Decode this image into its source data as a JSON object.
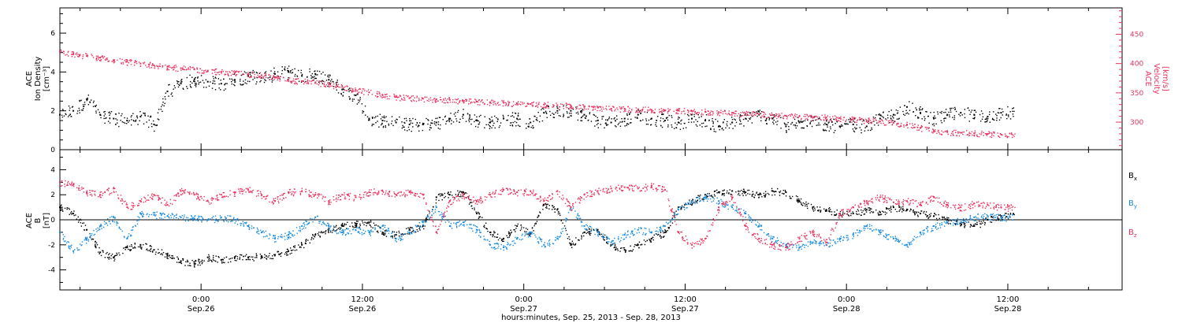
{
  "chart_data": [
    {
      "type": "scatter",
      "panel": "top",
      "ylabel_left": [
        "ACE",
        "Ion Density",
        "[cm⁻³]"
      ],
      "ylabel_right": [
        "ACE",
        "Velocity",
        "[km/s]"
      ],
      "left_ylim": [
        0,
        7.3
      ],
      "left_ticks": [
        0,
        2,
        4,
        6
      ],
      "left_tick_labels": [
        "0",
        "2",
        "4",
        "6"
      ],
      "right_ylim": [
        253,
        495
      ],
      "right_ticks": [
        300,
        350,
        400,
        450
      ],
      "right_tick_labels": [
        "300",
        "350",
        "400",
        "450"
      ],
      "colors": {
        "density": "#000000",
        "velocity": "#e8335f"
      },
      "series": [
        {
          "key": "density",
          "axis": "left",
          "x": [
            0,
            2,
            4,
            6,
            8,
            10,
            12,
            14,
            16,
            18,
            20,
            22,
            24,
            26,
            28,
            30,
            32,
            34,
            36,
            38,
            40,
            42,
            44,
            46,
            48,
            50,
            52,
            54,
            56,
            58,
            60,
            62,
            64,
            66,
            68,
            70,
            72,
            74,
            76,
            78,
            80,
            82,
            84,
            86,
            88,
            90,
            92,
            94,
            96,
            98,
            100,
            102,
            104,
            106,
            108,
            110,
            112,
            114,
            116,
            118,
            120,
            122,
            124,
            126,
            128,
            130,
            132,
            134,
            136,
            138,
            140
          ],
          "y": [
            1.8,
            2.0,
            2.6,
            1.8,
            1.6,
            1.5,
            1.7,
            1.3,
            3.0,
            3.4,
            3.6,
            3.5,
            3.4,
            3.6,
            3.8,
            3.7,
            3.9,
            4.0,
            3.8,
            3.9,
            3.6,
            3.1,
            2.8,
            1.6,
            1.5,
            1.4,
            1.3,
            1.3,
            1.4,
            1.6,
            1.8,
            1.5,
            1.4,
            1.6,
            1.6,
            1.4,
            1.9,
            2.0,
            2.0,
            1.8,
            1.5,
            1.4,
            1.6,
            1.8,
            1.6,
            1.5,
            1.4,
            1.6,
            1.5,
            1.2,
            1.4,
            1.6,
            1.8,
            1.6,
            1.2,
            1.4,
            1.5,
            1.3,
            1.2,
            1.3,
            1.2,
            1.6,
            1.8,
            2.2,
            1.9,
            1.6,
            1.8,
            1.9,
            1.8,
            1.7,
            1.9
          ]
        },
        {
          "key": "velocity",
          "axis": "right",
          "x": [
            0,
            2,
            4,
            6,
            8,
            10,
            12,
            14,
            16,
            18,
            20,
            22,
            24,
            26,
            28,
            30,
            32,
            34,
            36,
            38,
            40,
            42,
            44,
            46,
            48,
            50,
            52,
            54,
            56,
            58,
            60,
            62,
            64,
            66,
            68,
            70,
            72,
            74,
            76,
            78,
            80,
            82,
            84,
            86,
            88,
            90,
            92,
            94,
            96,
            98,
            100,
            102,
            104,
            106,
            108,
            110,
            112,
            114,
            116,
            118,
            120,
            122,
            124,
            126,
            128,
            130,
            132,
            134,
            136,
            138,
            140
          ],
          "y": [
            420,
            416,
            413,
            410,
            406,
            403,
            400,
            397,
            395,
            392,
            390,
            388,
            386,
            384,
            382,
            380,
            376,
            372,
            370,
            368,
            364,
            360,
            355,
            351,
            346,
            343,
            341,
            340,
            339,
            338,
            336,
            335,
            334,
            333,
            332,
            331,
            330,
            329,
            328,
            326,
            325,
            323,
            323,
            322,
            321,
            320,
            320,
            319,
            318,
            317,
            316,
            315,
            314,
            312,
            311,
            310,
            309,
            308,
            307,
            305,
            303,
            301,
            299,
            296,
            290,
            285,
            283,
            282,
            281,
            280,
            279
          ]
        }
      ]
    },
    {
      "type": "scatter",
      "panel": "bottom",
      "ylabel_left": [
        "ACE",
        "B",
        "[nT]"
      ],
      "ylim": [
        -5.6,
        5.6
      ],
      "ticks": [
        -4,
        -2,
        0,
        2,
        4
      ],
      "tick_labels": [
        "-4",
        "-2",
        "0",
        "2",
        "4"
      ],
      "zero_line": true,
      "colors": {
        "Bx": "#000000",
        "By": "#1a8ce0",
        "Bz": "#e8335f"
      },
      "series": [
        {
          "key": "Bx",
          "name": "Bx",
          "x": [
            0,
            2,
            4,
            6,
            8,
            10,
            12,
            14,
            16,
            18,
            20,
            22,
            24,
            26,
            28,
            30,
            32,
            34,
            36,
            38,
            40,
            42,
            44,
            46,
            48,
            50,
            52,
            54,
            56,
            58,
            60,
            62,
            64,
            66,
            68,
            70,
            72,
            74,
            76,
            78,
            80,
            82,
            84,
            86,
            88,
            90,
            92,
            94,
            96,
            98,
            100,
            102,
            104,
            106,
            108,
            110,
            112,
            114,
            116,
            118,
            120,
            122,
            124,
            126,
            128,
            130,
            132,
            134,
            136,
            138,
            140
          ],
          "y": [
            1.0,
            0.5,
            -0.8,
            -2.6,
            -3.0,
            -2.2,
            -2.0,
            -2.4,
            -2.8,
            -3.3,
            -3.5,
            -3.0,
            -3.2,
            -3.0,
            -3.0,
            -2.9,
            -2.8,
            -2.5,
            -2.0,
            -1.2,
            -0.8,
            -0.5,
            -0.3,
            -0.2,
            -1.0,
            -1.2,
            -0.8,
            -0.5,
            1.8,
            2.0,
            2.2,
            0.5,
            -1.0,
            -1.5,
            -0.5,
            -1.0,
            1.2,
            0.8,
            -2.0,
            -1.0,
            -0.8,
            -2.0,
            -2.4,
            -2.0,
            -1.5,
            -1.0,
            1.0,
            1.5,
            2.0,
            2.2,
            2.3,
            2.2,
            2.0,
            2.3,
            2.2,
            1.5,
            1.0,
            0.8,
            0.5,
            0.5,
            0.8,
            0.6,
            1.0,
            0.8,
            0.5,
            0.3,
            0.0,
            -0.3,
            -0.5,
            0.0,
            0.3
          ]
        },
        {
          "key": "By",
          "name": "By",
          "x": [
            0,
            2,
            4,
            6,
            8,
            10,
            12,
            14,
            16,
            18,
            20,
            22,
            24,
            26,
            28,
            30,
            32,
            34,
            36,
            38,
            40,
            42,
            44,
            46,
            48,
            50,
            52,
            54,
            56,
            58,
            60,
            62,
            64,
            66,
            68,
            70,
            72,
            74,
            76,
            78,
            80,
            82,
            84,
            86,
            88,
            90,
            92,
            94,
            96,
            98,
            100,
            102,
            104,
            106,
            108,
            110,
            112,
            114,
            116,
            118,
            120,
            122,
            124,
            126,
            128,
            130,
            132,
            134,
            136,
            138,
            140
          ],
          "y": [
            -1.0,
            -2.5,
            -1.5,
            -0.5,
            0.2,
            -1.5,
            0.5,
            0.4,
            0.3,
            0.2,
            0.1,
            0.0,
            0.2,
            0.0,
            -0.5,
            -1.0,
            -1.5,
            -1.2,
            -0.5,
            0.2,
            -0.5,
            -1.0,
            -0.8,
            -1.0,
            -0.5,
            -1.5,
            -1.0,
            -0.2,
            1.0,
            -0.5,
            -0.2,
            -0.8,
            -2.0,
            -2.2,
            -1.5,
            -1.0,
            -2.0,
            -1.5,
            1.0,
            -0.5,
            -1.0,
            -1.8,
            -1.2,
            -0.8,
            -1.0,
            -0.5,
            0.8,
            1.5,
            1.8,
            1.5,
            1.0,
            0.5,
            -0.5,
            -1.5,
            -2.0,
            -2.2,
            -1.8,
            -2.0,
            -1.5,
            -1.2,
            -0.5,
            -1.0,
            -1.5,
            -2.0,
            -1.0,
            -0.5,
            -0.2,
            0.0,
            0.2,
            0.3,
            0.2
          ]
        },
        {
          "key": "Bz",
          "name": "Bz",
          "x": [
            0,
            2,
            4,
            6,
            8,
            10,
            12,
            14,
            16,
            18,
            20,
            22,
            24,
            26,
            28,
            30,
            32,
            34,
            36,
            38,
            40,
            42,
            44,
            46,
            48,
            50,
            52,
            54,
            56,
            58,
            60,
            62,
            64,
            66,
            68,
            70,
            72,
            74,
            76,
            78,
            80,
            82,
            84,
            86,
            88,
            90,
            92,
            94,
            96,
            98,
            100,
            102,
            104,
            106,
            108,
            110,
            112,
            114,
            116,
            118,
            120,
            122,
            124,
            126,
            128,
            130,
            132,
            134,
            136,
            138,
            140
          ],
          "y": [
            3.0,
            2.8,
            2.2,
            2.0,
            2.5,
            1.0,
            1.5,
            2.0,
            1.2,
            2.3,
            2.0,
            1.5,
            2.0,
            2.2,
            2.4,
            2.0,
            1.5,
            2.2,
            2.3,
            2.0,
            1.5,
            2.0,
            1.8,
            2.2,
            2.3,
            2.0,
            2.2,
            2.0,
            -1.0,
            1.5,
            2.0,
            1.5,
            2.0,
            2.4,
            2.2,
            2.3,
            1.5,
            2.3,
            1.0,
            2.0,
            2.3,
            2.5,
            2.6,
            2.5,
            2.7,
            2.4,
            -1.0,
            -2.0,
            -1.5,
            1.0,
            1.8,
            -0.5,
            -1.5,
            -2.0,
            -2.2,
            -1.5,
            -1.0,
            -1.8,
            0.5,
            1.0,
            1.5,
            1.8,
            1.4,
            1.5,
            1.2,
            1.8,
            1.2,
            1.0,
            1.3,
            1.2,
            1.0
          ]
        }
      ],
      "legend": [
        {
          "base": "B",
          "sub": "x",
          "key": "Bx"
        },
        {
          "base": "B",
          "sub": "y",
          "key": "By"
        },
        {
          "base": "B",
          "sub": "z",
          "key": "Bz"
        }
      ]
    }
  ],
  "x_axis": {
    "label": "hours:minutes, Sep. 25, 2013 - Sep. 28, 2013",
    "range_hours": [
      0,
      158
    ],
    "ticks": [
      {
        "hour": 21,
        "time": "0:00",
        "date": "Sep.26"
      },
      {
        "hour": 45,
        "time": "12:00",
        "date": "Sep.26"
      },
      {
        "hour": 69,
        "time": "0:00",
        "date": "Sep.27"
      },
      {
        "hour": 93,
        "time": "12:00",
        "date": "Sep.27"
      },
      {
        "hour": 117,
        "time": "0:00",
        "date": "Sep.28"
      },
      {
        "hour": 141,
        "time": "12:00",
        "date": "Sep.28"
      }
    ]
  }
}
